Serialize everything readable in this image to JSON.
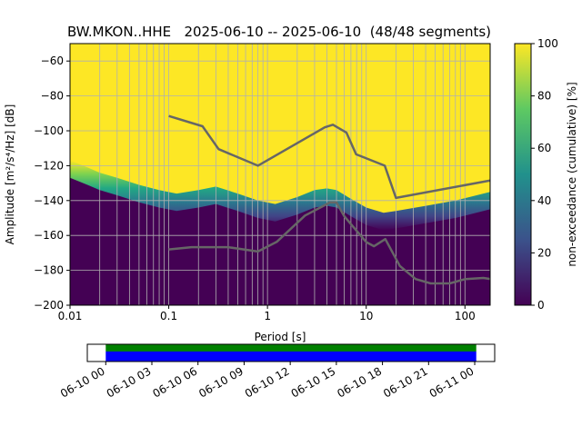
{
  "chart_data": {
    "type": "heatmap",
    "title": "BW.MKON..HHE   2025-06-10 -- 2025-06-10  (48/48 segments)",
    "xlabel": "Period [s]",
    "ylabel": "Amplitude [m²/s⁴/Hz] [dB]",
    "xscale": "log",
    "xlim": [
      0.01,
      180
    ],
    "ylim": [
      -200,
      -50
    ],
    "xticks": [
      {
        "value": 0.01,
        "label": "0.01"
      },
      {
        "value": 0.1,
        "label": "0.1"
      },
      {
        "value": 1,
        "label": "1"
      },
      {
        "value": 10,
        "label": "10"
      },
      {
        "value": 100,
        "label": "100"
      }
    ],
    "yticks": [
      -60,
      -80,
      -100,
      -120,
      -140,
      -160,
      -180,
      -200
    ],
    "grid": true,
    "colorbar": {
      "label": "non-exceedance (cumulative) [%]",
      "ticks": [
        0,
        20,
        40,
        60,
        80,
        100
      ],
      "colors": [
        "#440154",
        "#3b528b",
        "#21918c",
        "#5ec962",
        "#fde725"
      ]
    },
    "colors": {
      "low_fill": "#440154",
      "high_fill": "#fde725",
      "noise_model": "#666666",
      "grid": "#b0b0b0",
      "timeline_green": "#008000",
      "timeline_blue": "#0000ff"
    },
    "psd_boundary": [
      {
        "period": 0.01,
        "db": -124
      },
      {
        "period": 0.015,
        "db": -128
      },
      {
        "period": 0.02,
        "db": -131
      },
      {
        "period": 0.03,
        "db": -134
      },
      {
        "period": 0.05,
        "db": -138
      },
      {
        "period": 0.08,
        "db": -141
      },
      {
        "period": 0.12,
        "db": -143
      },
      {
        "period": 0.2,
        "db": -141
      },
      {
        "period": 0.3,
        "db": -139
      },
      {
        "period": 0.5,
        "db": -143
      },
      {
        "period": 0.8,
        "db": -147
      },
      {
        "period": 1.2,
        "db": -149
      },
      {
        "period": 2,
        "db": -145
      },
      {
        "period": 3,
        "db": -141
      },
      {
        "period": 4,
        "db": -140
      },
      {
        "period": 5,
        "db": -141
      },
      {
        "period": 7,
        "db": -146
      },
      {
        "period": 10,
        "db": -151
      },
      {
        "period": 15,
        "db": -154
      },
      {
        "period": 20,
        "db": -153
      },
      {
        "period": 40,
        "db": -150
      },
      {
        "period": 80,
        "db": -147
      },
      {
        "period": 180,
        "db": -142
      }
    ],
    "noise_models": [
      {
        "name": "high",
        "points": [
          {
            "period": 0.1,
            "db": -91.5
          },
          {
            "period": 0.22,
            "db": -97.4
          },
          {
            "period": 0.32,
            "db": -110.5
          },
          {
            "period": 0.8,
            "db": -120
          },
          {
            "period": 3.8,
            "db": -98
          },
          {
            "period": 4.6,
            "db": -96.5
          },
          {
            "period": 6.3,
            "db": -101
          },
          {
            "period": 7.9,
            "db": -113.5
          },
          {
            "period": 15.4,
            "db": -120
          },
          {
            "period": 20,
            "db": -138.5
          },
          {
            "period": 180,
            "db": -128.5
          }
        ]
      },
      {
        "name": "low",
        "points": [
          {
            "period": 0.1,
            "db": -168
          },
          {
            "period": 0.17,
            "db": -166.7
          },
          {
            "period": 0.4,
            "db": -166.7
          },
          {
            "period": 0.8,
            "db": -169.2
          },
          {
            "period": 1.24,
            "db": -163.7
          },
          {
            "period": 2.4,
            "db": -148.6
          },
          {
            "period": 4.3,
            "db": -141.1
          },
          {
            "period": 5.0,
            "db": -141.1
          },
          {
            "period": 6.0,
            "db": -149
          },
          {
            "period": 10,
            "db": -163.8
          },
          {
            "period": 12,
            "db": -166.2
          },
          {
            "period": 15.6,
            "db": -162.1
          },
          {
            "period": 21.9,
            "db": -177.5
          },
          {
            "period": 31.6,
            "db": -185
          },
          {
            "period": 45,
            "db": -187.5
          },
          {
            "period": 70,
            "db": -187.5
          },
          {
            "period": 101,
            "db": -185
          },
          {
            "period": 154,
            "db": -184.4
          },
          {
            "period": 180,
            "db": -185
          }
        ]
      }
    ],
    "timeline": {
      "ticks": [
        "06-10 00",
        "06-10 03",
        "06-10 06",
        "06-10 09",
        "06-10 12",
        "06-10 15",
        "06-10 18",
        "06-10 21",
        "06-11 00"
      ],
      "coverage_start_hour": 0,
      "coverage_end_hour": 24.1,
      "range_start_hour": -1.2,
      "range_end_hour": 25.3
    }
  }
}
